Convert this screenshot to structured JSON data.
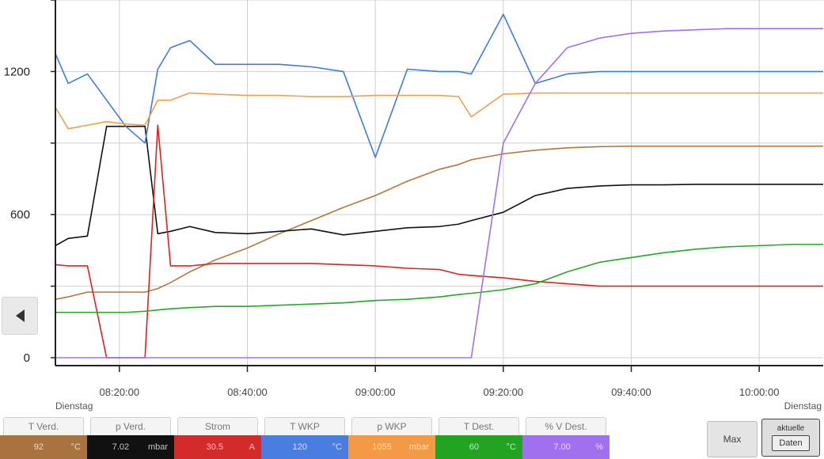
{
  "chart_data": {
    "type": "line",
    "yticks": [
      "0",
      "600",
      "1200"
    ],
    "ylim": [
      0,
      1500
    ],
    "xlim": [
      "08:10",
      "10:10"
    ],
    "xticks": [
      "08:20:00",
      "08:40:00",
      "09:00:00",
      "09:20:00",
      "09:40:00",
      "10:00:00"
    ],
    "x_day_labels": [
      "Dienstag",
      "Dienstag"
    ],
    "grid": true,
    "x_minutes_from_0810": [
      0,
      2,
      5,
      8,
      11,
      14,
      16,
      18,
      21,
      25,
      30,
      35,
      40,
      45,
      50,
      55,
      60,
      63,
      65,
      70,
      75,
      80,
      85,
      90,
      95,
      100,
      105,
      110,
      115,
      120
    ],
    "series": [
      {
        "name": "T Verd.",
        "color": "#b07840",
        "values": [
          245,
          255,
          275,
          275,
          275,
          275,
          290,
          315,
          360,
          410,
          460,
          520,
          575,
          630,
          680,
          740,
          790,
          810,
          830,
          855,
          870,
          880,
          885,
          887,
          887,
          887,
          887,
          887,
          887,
          887
        ]
      },
      {
        "name": "p Verd.",
        "color": "#111111",
        "values": [
          470,
          500,
          510,
          970,
          970,
          970,
          520,
          530,
          550,
          525,
          520,
          530,
          540,
          515,
          530,
          545,
          550,
          560,
          575,
          610,
          680,
          710,
          720,
          725,
          725,
          727,
          727,
          727,
          727,
          727
        ]
      },
      {
        "name": "Strom",
        "color": "#dd2222",
        "values": [
          390,
          385,
          385,
          0,
          0,
          0,
          975,
          385,
          385,
          395,
          395,
          395,
          395,
          390,
          385,
          375,
          370,
          350,
          345,
          335,
          320,
          310,
          300,
          300,
          300,
          300,
          300,
          300,
          300,
          300
        ]
      },
      {
        "name": "T WKP",
        "color": "#3f7ae0",
        "values": [
          1275,
          1150,
          1190,
          1080,
          970,
          900,
          1210,
          1300,
          1330,
          1230,
          1230,
          1230,
          1220,
          1200,
          840,
          1210,
          1200,
          1200,
          1190,
          1440,
          1150,
          1190,
          1200,
          1200,
          1200,
          1200,
          1200,
          1200,
          1200,
          1200
        ]
      },
      {
        "name": "p WKP",
        "color": "#f0a050",
        "values": [
          1050,
          960,
          975,
          990,
          980,
          975,
          1080,
          1080,
          1110,
          1105,
          1100,
          1100,
          1095,
          1095,
          1100,
          1100,
          1100,
          1095,
          1010,
          1105,
          1110,
          1110,
          1110,
          1110,
          1110,
          1110,
          1110,
          1110,
          1110,
          1110
        ]
      },
      {
        "name": "T Dest.",
        "color": "#22aa22",
        "values": [
          190,
          190,
          190,
          190,
          190,
          195,
          200,
          205,
          210,
          215,
          215,
          220,
          225,
          230,
          240,
          245,
          255,
          265,
          270,
          285,
          310,
          360,
          400,
          420,
          440,
          455,
          465,
          470,
          475,
          475
        ]
      },
      {
        "name": "% V Dest.",
        "color": "#a070f0",
        "values": [
          0,
          0,
          0,
          0,
          0,
          0,
          0,
          0,
          0,
          0,
          0,
          0,
          0,
          0,
          0,
          0,
          0,
          0,
          0,
          900,
          1150,
          1300,
          1340,
          1360,
          1370,
          1375,
          1380,
          1380,
          1380,
          1380
        ]
      }
    ]
  },
  "legend": [
    {
      "name": "T Verd.",
      "value": "92",
      "unit": "°C",
      "color": "#a8733f"
    },
    {
      "name": "p Verd.",
      "value": "7.02",
      "unit": "mbar",
      "color": "#111111"
    },
    {
      "name": "Strom",
      "value": "30.5",
      "unit": "A",
      "color": "#d42a2a"
    },
    {
      "name": "T WKP",
      "value": "120",
      "unit": "°C",
      "color": "#4a7de0"
    },
    {
      "name": "p WKP",
      "value": "1055",
      "unit": "mbar",
      "color": "#f29a45"
    },
    {
      "name": "T Dest.",
      "value": "60",
      "unit": "°C",
      "color": "#22a322"
    },
    {
      "name": "% V Dest.",
      "value": "7.00",
      "unit": "%",
      "color": "#a070ef"
    }
  ],
  "buttons": {
    "max": "Max",
    "period_top": "aktuelle",
    "period_bottom": "Daten"
  },
  "icons": {
    "back": "left-triangle-icon"
  }
}
